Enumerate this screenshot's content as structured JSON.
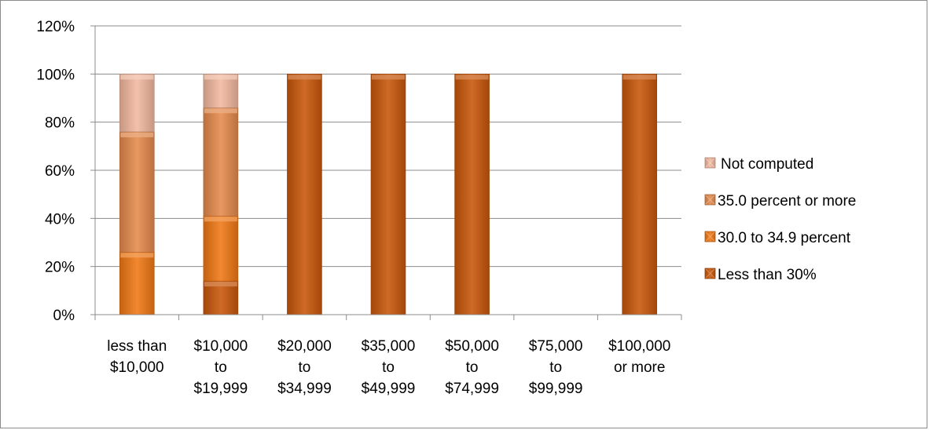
{
  "chart_data": {
    "type": "bar",
    "stacked": true,
    "categories": [
      [
        "less than",
        "$10,000"
      ],
      [
        "$10,000",
        "to",
        "$19,999"
      ],
      [
        "$20,000",
        "to",
        "$34,999"
      ],
      [
        "$35,000",
        "to",
        "$49,999"
      ],
      [
        "$50,000",
        "to",
        "$74,999"
      ],
      [
        "$75,000",
        "to",
        "$99,999"
      ],
      [
        "$100,000",
        "or more"
      ]
    ],
    "series": [
      {
        "name": "Less than 30%",
        "color": "#c8560a",
        "values": [
          0,
          14,
          100,
          100,
          100,
          0,
          100
        ]
      },
      {
        "name": "30.0 to 34.9 percent",
        "color": "#f07814",
        "values": [
          26,
          27,
          0,
          0,
          0,
          0,
          0
        ]
      },
      {
        "name": "35.0 percent or more",
        "color": "#e58a4c",
        "values": [
          50,
          45,
          0,
          0,
          0,
          0,
          0
        ]
      },
      {
        "name": "Not computed",
        "color": "#f2b8a0",
        "values": [
          24,
          14,
          0,
          0,
          0,
          0,
          0
        ]
      }
    ],
    "legend_order": [
      "Not computed",
      "35.0 percent or more",
      "30.0 to 34.9 percent",
      "Less than 30%"
    ],
    "y_ticks": [
      "0%",
      "20%",
      "40%",
      "60%",
      "80%",
      "100%",
      "120%"
    ],
    "ylim": [
      0,
      120
    ],
    "grid": true,
    "legend_position": "right",
    "title": "",
    "xlabel": "",
    "ylabel": ""
  }
}
